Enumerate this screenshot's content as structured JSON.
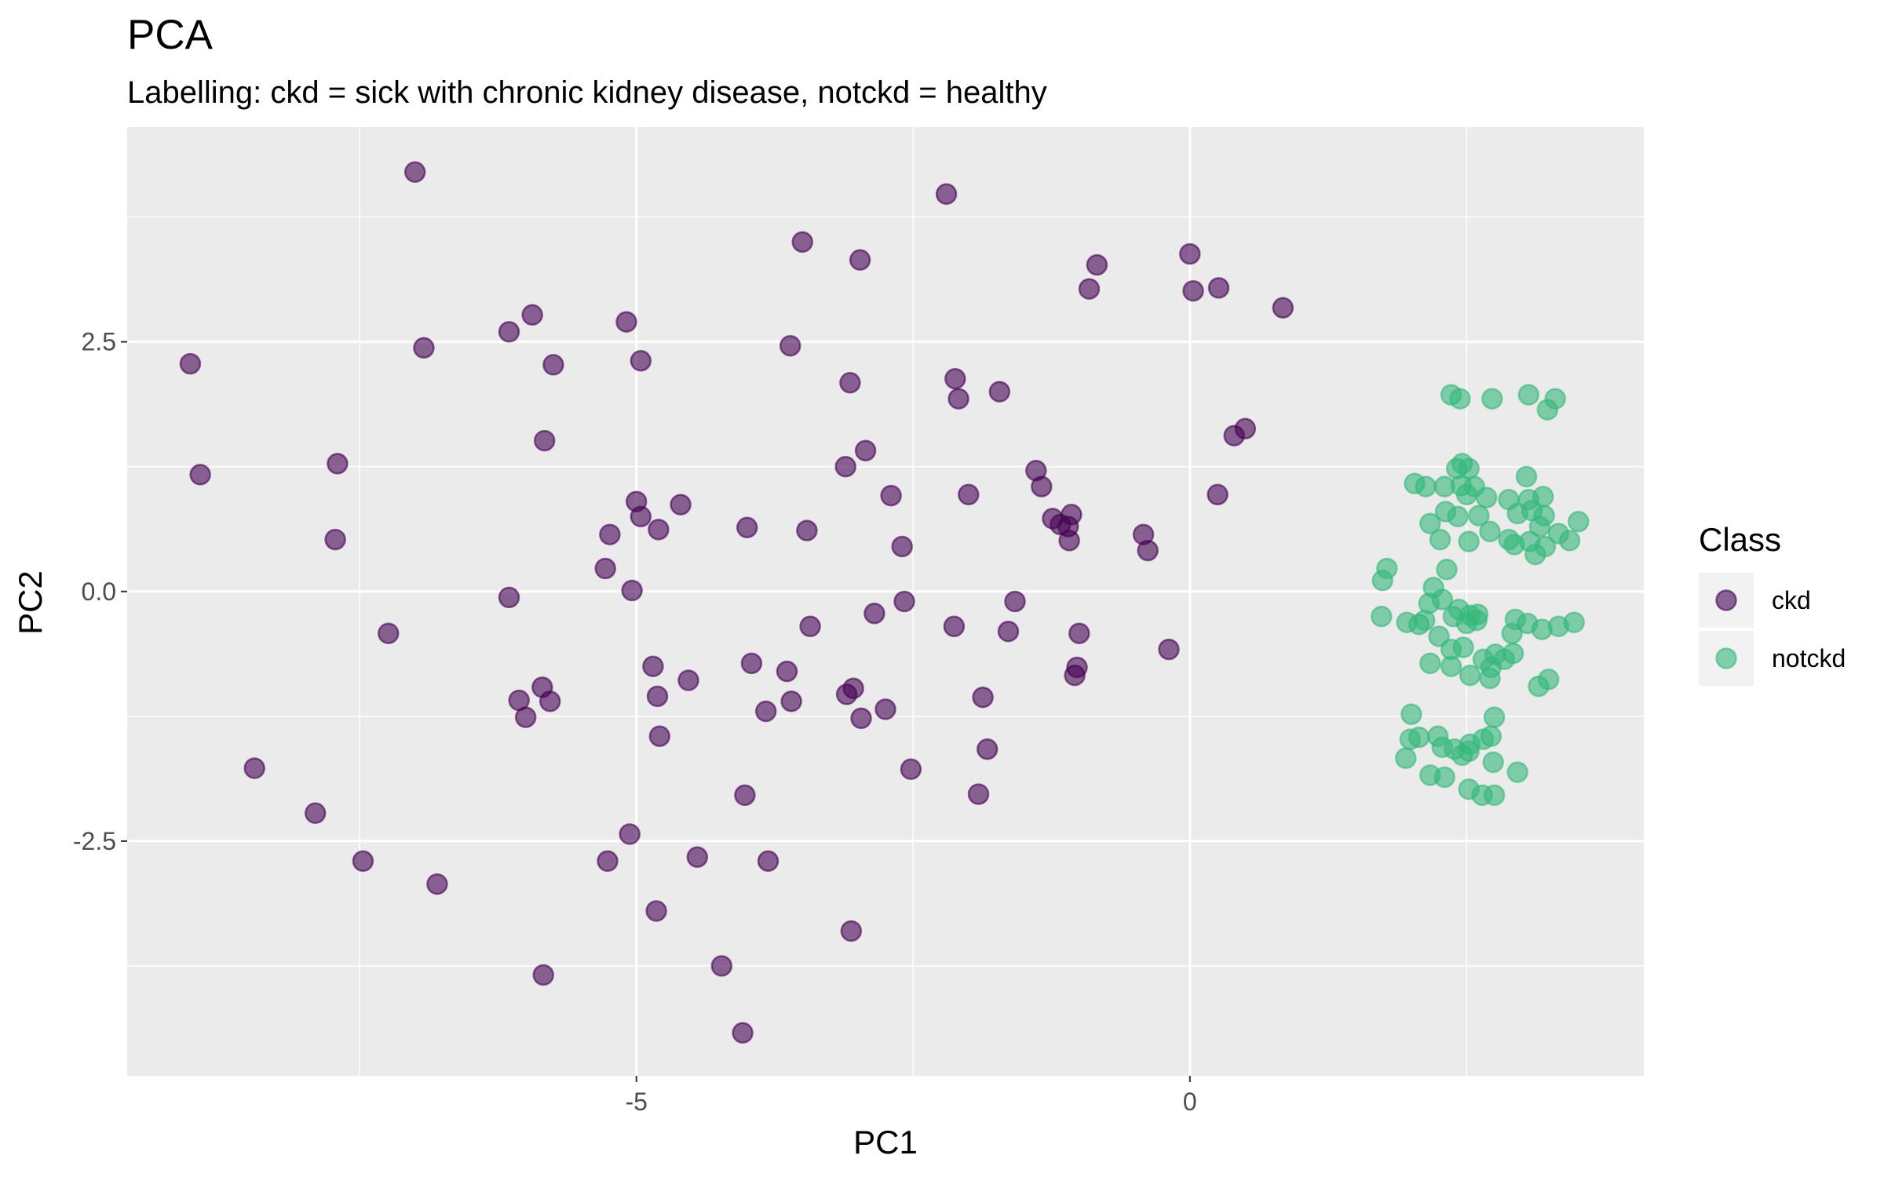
{
  "chart_data": {
    "type": "scatter",
    "title": "PCA",
    "subtitle": "Labelling: ckd = sick with chronic kidney disease, notckd = healthy",
    "xlabel": "PC1",
    "ylabel": "PC2",
    "xlim": [
      -9.6,
      4.1
    ],
    "ylim": [
      -4.85,
      4.65
    ],
    "x_ticks": [
      -5,
      0
    ],
    "x_tick_labels": [
      "-5",
      "0"
    ],
    "y_ticks": [
      -2.5,
      0,
      2.5
    ],
    "y_tick_labels": [
      "-2.5",
      "0.0",
      "2.5"
    ],
    "grid": true,
    "background": "#ebebeb",
    "legend": {
      "title": "Class",
      "position": "right"
    },
    "series": [
      {
        "name": "ckd",
        "color": "#440154",
        "points": [
          [
            -7.0,
            4.2
          ],
          [
            -2.2,
            3.98
          ],
          [
            -3.5,
            3.5
          ],
          [
            -2.98,
            3.32
          ],
          [
            -0.84,
            3.27
          ],
          [
            0.0,
            3.38
          ],
          [
            -0.91,
            3.03
          ],
          [
            0.03,
            3.01
          ],
          [
            0.26,
            3.04
          ],
          [
            0.84,
            2.84
          ],
          [
            -5.94,
            2.77
          ],
          [
            -6.15,
            2.6
          ],
          [
            -5.09,
            2.7
          ],
          [
            -6.92,
            2.44
          ],
          [
            -9.03,
            2.28
          ],
          [
            -5.75,
            2.27
          ],
          [
            -4.96,
            2.31
          ],
          [
            -3.61,
            2.46
          ],
          [
            -3.07,
            2.09
          ],
          [
            -2.12,
            2.13
          ],
          [
            -2.09,
            1.93
          ],
          [
            -1.72,
            2.0
          ],
          [
            0.4,
            1.56
          ],
          [
            0.5,
            1.63
          ],
          [
            -5.83,
            1.51
          ],
          [
            -7.7,
            1.28
          ],
          [
            -8.94,
            1.17
          ],
          [
            -2.93,
            1.41
          ],
          [
            -3.11,
            1.25
          ],
          [
            -1.39,
            1.21
          ],
          [
            -1.34,
            1.05
          ],
          [
            -5.0,
            0.9
          ],
          [
            -4.6,
            0.87
          ],
          [
            -2.7,
            0.96
          ],
          [
            -2.0,
            0.97
          ],
          [
            0.25,
            0.97
          ],
          [
            -4.96,
            0.75
          ],
          [
            -5.24,
            0.57
          ],
          [
            -4.8,
            0.62
          ],
          [
            -4.0,
            0.64
          ],
          [
            -3.46,
            0.61
          ],
          [
            -1.24,
            0.73
          ],
          [
            -1.17,
            0.67
          ],
          [
            -1.1,
            0.65
          ],
          [
            -1.07,
            0.77
          ],
          [
            -1.09,
            0.51
          ],
          [
            -7.72,
            0.52
          ],
          [
            -0.42,
            0.57
          ],
          [
            -0.38,
            0.41
          ],
          [
            -2.6,
            0.45
          ],
          [
            -5.28,
            0.23
          ],
          [
            -5.04,
            0.01
          ],
          [
            -6.15,
            -0.06
          ],
          [
            -2.58,
            -0.1
          ],
          [
            -1.58,
            -0.1
          ],
          [
            -7.24,
            -0.42
          ],
          [
            -3.43,
            -0.35
          ],
          [
            -2.85,
            -0.22
          ],
          [
            -2.13,
            -0.35
          ],
          [
            -1.64,
            -0.4
          ],
          [
            -1.0,
            -0.42
          ],
          [
            -0.19,
            -0.58
          ],
          [
            -4.85,
            -0.75
          ],
          [
            -3.96,
            -0.72
          ],
          [
            -3.64,
            -0.8
          ],
          [
            -4.53,
            -0.89
          ],
          [
            -1.02,
            -0.76
          ],
          [
            -1.04,
            -0.84
          ],
          [
            -5.85,
            -0.96
          ],
          [
            -4.81,
            -1.05
          ],
          [
            -3.04,
            -0.97
          ],
          [
            -3.1,
            -1.03
          ],
          [
            -1.87,
            -1.06
          ],
          [
            -6.06,
            -1.09
          ],
          [
            -5.78,
            -1.1
          ],
          [
            -3.83,
            -1.2
          ],
          [
            -3.6,
            -1.1
          ],
          [
            -2.75,
            -1.18
          ],
          [
            -6.0,
            -1.26
          ],
          [
            -2.97,
            -1.27
          ],
          [
            -4.79,
            -1.45
          ],
          [
            -1.83,
            -1.58
          ],
          [
            -8.45,
            -1.77
          ],
          [
            -2.52,
            -1.78
          ],
          [
            -4.02,
            -2.04
          ],
          [
            -1.91,
            -2.03
          ],
          [
            -7.9,
            -2.22
          ],
          [
            -5.06,
            -2.43
          ],
          [
            -7.47,
            -2.7
          ],
          [
            -5.26,
            -2.7
          ],
          [
            -4.45,
            -2.66
          ],
          [
            -3.81,
            -2.7
          ],
          [
            -6.8,
            -2.93
          ],
          [
            -4.82,
            -3.2
          ],
          [
            -3.06,
            -3.4
          ],
          [
            -4.23,
            -3.75
          ],
          [
            -5.84,
            -3.84
          ],
          [
            -4.04,
            -4.42
          ]
        ]
      },
      {
        "name": "notckd",
        "color": "#35b779",
        "points": [
          [
            2.36,
            1.97
          ],
          [
            2.44,
            1.93
          ],
          [
            2.73,
            1.93
          ],
          [
            3.06,
            1.97
          ],
          [
            3.3,
            1.93
          ],
          [
            3.23,
            1.82
          ],
          [
            2.46,
            1.28
          ],
          [
            2.41,
            1.23
          ],
          [
            2.52,
            1.23
          ],
          [
            3.04,
            1.15
          ],
          [
            2.03,
            1.08
          ],
          [
            2.13,
            1.05
          ],
          [
            2.3,
            1.05
          ],
          [
            2.45,
            1.06
          ],
          [
            2.57,
            1.05
          ],
          [
            2.5,
            0.97
          ],
          [
            2.68,
            0.94
          ],
          [
            2.88,
            0.92
          ],
          [
            3.06,
            0.92
          ],
          [
            3.19,
            0.95
          ],
          [
            2.31,
            0.8
          ],
          [
            2.42,
            0.75
          ],
          [
            2.61,
            0.76
          ],
          [
            2.96,
            0.78
          ],
          [
            3.09,
            0.81
          ],
          [
            3.2,
            0.76
          ],
          [
            3.16,
            0.65
          ],
          [
            3.51,
            0.7
          ],
          [
            2.17,
            0.68
          ],
          [
            2.71,
            0.6
          ],
          [
            2.88,
            0.52
          ],
          [
            2.93,
            0.47
          ],
          [
            3.07,
            0.5
          ],
          [
            3.21,
            0.45
          ],
          [
            3.33,
            0.58
          ],
          [
            3.43,
            0.51
          ],
          [
            2.26,
            0.52
          ],
          [
            2.52,
            0.5
          ],
          [
            3.12,
            0.37
          ],
          [
            1.78,
            0.23
          ],
          [
            1.74,
            0.11
          ],
          [
            2.32,
            0.22
          ],
          [
            2.2,
            0.04
          ],
          [
            2.28,
            -0.08
          ],
          [
            2.16,
            -0.12
          ],
          [
            2.43,
            -0.18
          ],
          [
            2.53,
            -0.24
          ],
          [
            2.6,
            -0.23
          ],
          [
            2.38,
            -0.25
          ],
          [
            2.12,
            -0.29
          ],
          [
            1.96,
            -0.31
          ],
          [
            2.07,
            -0.33
          ],
          [
            1.73,
            -0.25
          ],
          [
            2.5,
            -0.32
          ],
          [
            2.59,
            -0.29
          ],
          [
            2.94,
            -0.28
          ],
          [
            3.05,
            -0.32
          ],
          [
            3.18,
            -0.38
          ],
          [
            3.33,
            -0.35
          ],
          [
            3.47,
            -0.31
          ],
          [
            2.91,
            -0.42
          ],
          [
            2.25,
            -0.45
          ],
          [
            2.36,
            -0.58
          ],
          [
            2.47,
            -0.56
          ],
          [
            2.65,
            -0.68
          ],
          [
            2.76,
            -0.63
          ],
          [
            2.84,
            -0.68
          ],
          [
            2.72,
            -0.76
          ],
          [
            2.92,
            -0.62
          ],
          [
            2.36,
            -0.75
          ],
          [
            2.53,
            -0.84
          ],
          [
            2.17,
            -0.72
          ],
          [
            3.15,
            -0.95
          ],
          [
            3.24,
            -0.88
          ],
          [
            2.71,
            -0.87
          ],
          [
            2.0,
            -1.23
          ],
          [
            2.07,
            -1.46
          ],
          [
            2.24,
            -1.45
          ],
          [
            2.28,
            -1.56
          ],
          [
            2.39,
            -1.58
          ],
          [
            2.53,
            -1.53
          ],
          [
            2.65,
            -1.48
          ],
          [
            2.72,
            -1.45
          ],
          [
            2.75,
            -1.26
          ],
          [
            2.52,
            -1.6
          ],
          [
            2.46,
            -1.64
          ],
          [
            1.95,
            -1.67
          ],
          [
            1.99,
            -1.48
          ],
          [
            2.17,
            -1.84
          ],
          [
            2.3,
            -1.86
          ],
          [
            2.74,
            -1.71
          ],
          [
            2.75,
            -2.04
          ],
          [
            2.64,
            -2.04
          ],
          [
            2.52,
            -1.98
          ],
          [
            2.96,
            -1.81
          ]
        ]
      }
    ]
  }
}
